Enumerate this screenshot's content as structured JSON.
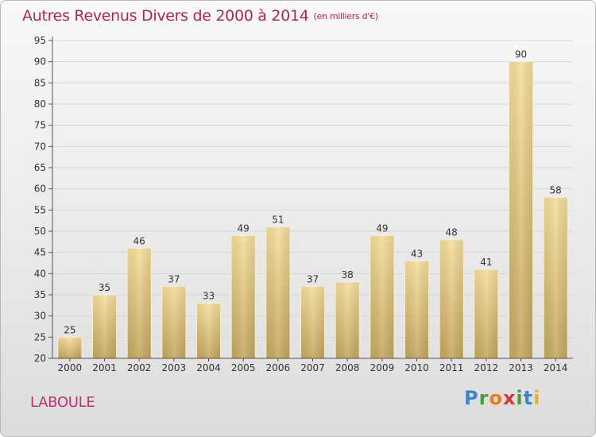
{
  "header": {
    "title": "Autres Revenus Divers de 2000 à 2014",
    "subtitle": "(en milliers d'€)"
  },
  "footer": {
    "location": "LABOULE",
    "logo": "Proxiti"
  },
  "colors": {
    "title": "#b0245a",
    "bar_light": "#f5dd9a",
    "bar_dark": "#c4a65e",
    "grid": "#d6d6d6"
  },
  "chart_data": {
    "type": "bar",
    "title": "Autres Revenus Divers de 2000 à 2014",
    "subtitle": "(en milliers d'€)",
    "xlabel": "",
    "ylabel": "",
    "categories": [
      "2000",
      "2001",
      "2002",
      "2003",
      "2004",
      "2005",
      "2006",
      "2007",
      "2008",
      "2009",
      "2010",
      "2011",
      "2012",
      "2013",
      "2014"
    ],
    "values": [
      25,
      35,
      46,
      37,
      33,
      49,
      51,
      37,
      38,
      49,
      43,
      48,
      41,
      90,
      58
    ],
    "ylim": [
      20,
      95
    ],
    "yticks": [
      20,
      25,
      30,
      35,
      40,
      45,
      50,
      55,
      60,
      65,
      70,
      75,
      80,
      85,
      90,
      95
    ],
    "grid": true,
    "data_labels": true
  }
}
